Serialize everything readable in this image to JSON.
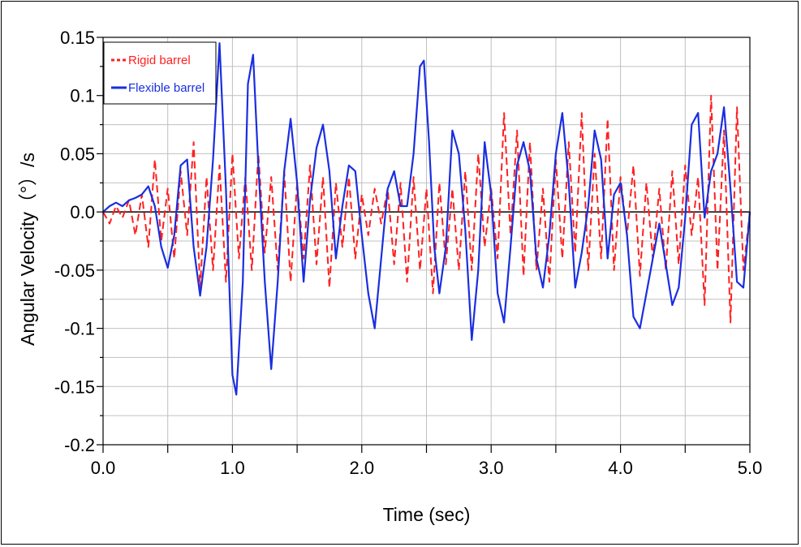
{
  "chart_data": {
    "type": "line",
    "title": "",
    "xlabel": "Time (sec)",
    "ylabel": "Angular Velocity（°）/s",
    "xlim": [
      0.0,
      5.0
    ],
    "ylim": [
      -0.2,
      0.15
    ],
    "x_ticks": [
      0.0,
      0.5,
      1.0,
      1.5,
      2.0,
      2.5,
      3.0,
      3.5,
      4.0,
      4.5,
      5.0
    ],
    "x_tick_labels": [
      "0.0",
      "1.0",
      "2.0",
      "3.0",
      "4.0",
      "5.0"
    ],
    "y_ticks": [
      -0.2,
      -0.15,
      -0.1,
      -0.05,
      0.0,
      0.05,
      0.1,
      0.15
    ],
    "y_tick_labels": [
      "-0.2",
      "-0.15",
      "-0.1",
      "-0.05",
      "0.0",
      "0.05",
      "0.1",
      "0.15"
    ],
    "grid": true,
    "legend_position": "top-left",
    "series": [
      {
        "name": "Rigid barrel",
        "color": "#ff2020",
        "style": "dashed",
        "x": [
          0.0,
          0.05,
          0.1,
          0.15,
          0.2,
          0.25,
          0.3,
          0.35,
          0.4,
          0.45,
          0.5,
          0.55,
          0.6,
          0.65,
          0.7,
          0.75,
          0.8,
          0.85,
          0.9,
          0.95,
          1.0,
          1.05,
          1.1,
          1.15,
          1.2,
          1.25,
          1.3,
          1.35,
          1.4,
          1.45,
          1.5,
          1.55,
          1.6,
          1.65,
          1.7,
          1.75,
          1.8,
          1.85,
          1.9,
          1.95,
          2.0,
          2.05,
          2.1,
          2.15,
          2.2,
          2.25,
          2.3,
          2.35,
          2.4,
          2.45,
          2.5,
          2.55,
          2.6,
          2.65,
          2.7,
          2.75,
          2.8,
          2.85,
          2.9,
          2.95,
          3.0,
          3.05,
          3.1,
          3.15,
          3.2,
          3.25,
          3.3,
          3.35,
          3.4,
          3.45,
          3.5,
          3.55,
          3.6,
          3.65,
          3.7,
          3.75,
          3.8,
          3.85,
          3.9,
          3.95,
          4.0,
          4.05,
          4.1,
          4.15,
          4.2,
          4.25,
          4.3,
          4.35,
          4.4,
          4.45,
          4.5,
          4.55,
          4.6,
          4.65,
          4.7,
          4.75,
          4.8,
          4.85,
          4.9,
          4.95,
          5.0
        ],
        "y": [
          0.0,
          -0.01,
          0.005,
          -0.005,
          0.01,
          -0.02,
          0.015,
          -0.03,
          0.045,
          -0.025,
          0.02,
          -0.04,
          0.035,
          -0.02,
          0.06,
          -0.065,
          0.03,
          -0.05,
          0.04,
          -0.06,
          0.05,
          -0.04,
          0.03,
          -0.05,
          0.05,
          -0.035,
          0.03,
          -0.05,
          0.035,
          -0.06,
          0.025,
          -0.04,
          0.04,
          -0.045,
          0.03,
          -0.065,
          0.025,
          -0.03,
          0.03,
          -0.04,
          0.015,
          -0.02,
          0.02,
          -0.01,
          0.02,
          -0.045,
          0.025,
          -0.06,
          0.03,
          -0.05,
          0.02,
          -0.07,
          0.025,
          -0.045,
          0.02,
          -0.05,
          0.035,
          -0.05,
          0.05,
          -0.03,
          0.02,
          -0.04,
          0.085,
          -0.02,
          0.07,
          -0.055,
          0.06,
          -0.05,
          0.02,
          -0.06,
          0.045,
          -0.04,
          0.06,
          -0.035,
          0.085,
          -0.05,
          0.05,
          -0.04,
          0.08,
          -0.05,
          0.03,
          -0.02,
          0.04,
          -0.055,
          0.025,
          -0.04,
          0.02,
          -0.05,
          0.035,
          -0.045,
          0.04,
          -0.02,
          0.03,
          -0.08,
          0.1,
          -0.05,
          0.07,
          -0.095,
          0.09,
          -0.05,
          0.0
        ]
      },
      {
        "name": "Flexible barrel",
        "color": "#1a2ee0",
        "style": "solid",
        "x": [
          0.0,
          0.05,
          0.1,
          0.15,
          0.2,
          0.25,
          0.3,
          0.35,
          0.4,
          0.45,
          0.5,
          0.55,
          0.6,
          0.65,
          0.7,
          0.75,
          0.8,
          0.85,
          0.9,
          0.95,
          1.0,
          1.03,
          1.08,
          1.12,
          1.16,
          1.2,
          1.25,
          1.3,
          1.35,
          1.4,
          1.45,
          1.5,
          1.55,
          1.6,
          1.65,
          1.7,
          1.75,
          1.8,
          1.85,
          1.9,
          1.95,
          2.0,
          2.05,
          2.1,
          2.15,
          2.2,
          2.25,
          2.3,
          2.35,
          2.4,
          2.45,
          2.48,
          2.52,
          2.56,
          2.6,
          2.65,
          2.7,
          2.75,
          2.8,
          2.85,
          2.9,
          2.95,
          3.0,
          3.05,
          3.1,
          3.15,
          3.2,
          3.25,
          3.3,
          3.35,
          3.4,
          3.45,
          3.5,
          3.55,
          3.6,
          3.65,
          3.7,
          3.75,
          3.8,
          3.85,
          3.9,
          3.95,
          4.0,
          4.05,
          4.1,
          4.15,
          4.2,
          4.25,
          4.3,
          4.35,
          4.4,
          4.45,
          4.5,
          4.55,
          4.6,
          4.65,
          4.7,
          4.75,
          4.8,
          4.85,
          4.9,
          4.95,
          5.0
        ],
        "y": [
          0.0,
          0.005,
          0.008,
          0.005,
          0.01,
          0.012,
          0.015,
          0.022,
          0.005,
          -0.03,
          -0.048,
          -0.02,
          0.04,
          0.045,
          -0.03,
          -0.072,
          -0.03,
          0.045,
          0.145,
          0.02,
          -0.14,
          -0.157,
          -0.06,
          0.11,
          0.135,
          0.04,
          -0.06,
          -0.135,
          -0.06,
          0.035,
          0.08,
          0.025,
          -0.06,
          0.01,
          0.055,
          0.075,
          0.035,
          -0.04,
          0.005,
          0.04,
          0.035,
          -0.02,
          -0.07,
          -0.1,
          -0.04,
          0.02,
          0.035,
          0.005,
          0.005,
          0.05,
          0.125,
          0.13,
          0.06,
          -0.03,
          -0.07,
          -0.03,
          0.07,
          0.05,
          -0.015,
          -0.11,
          -0.05,
          0.06,
          0.015,
          -0.07,
          -0.095,
          -0.03,
          0.04,
          0.06,
          0.035,
          -0.04,
          -0.065,
          -0.02,
          0.05,
          0.085,
          0.025,
          -0.065,
          -0.035,
          0.005,
          0.07,
          0.045,
          -0.04,
          0.015,
          0.025,
          -0.02,
          -0.09,
          -0.1,
          -0.07,
          -0.04,
          -0.01,
          -0.045,
          -0.08,
          -0.065,
          -0.005,
          0.075,
          0.085,
          -0.005,
          0.035,
          0.05,
          0.09,
          0.02,
          -0.06,
          -0.065,
          0.0
        ]
      }
    ]
  }
}
